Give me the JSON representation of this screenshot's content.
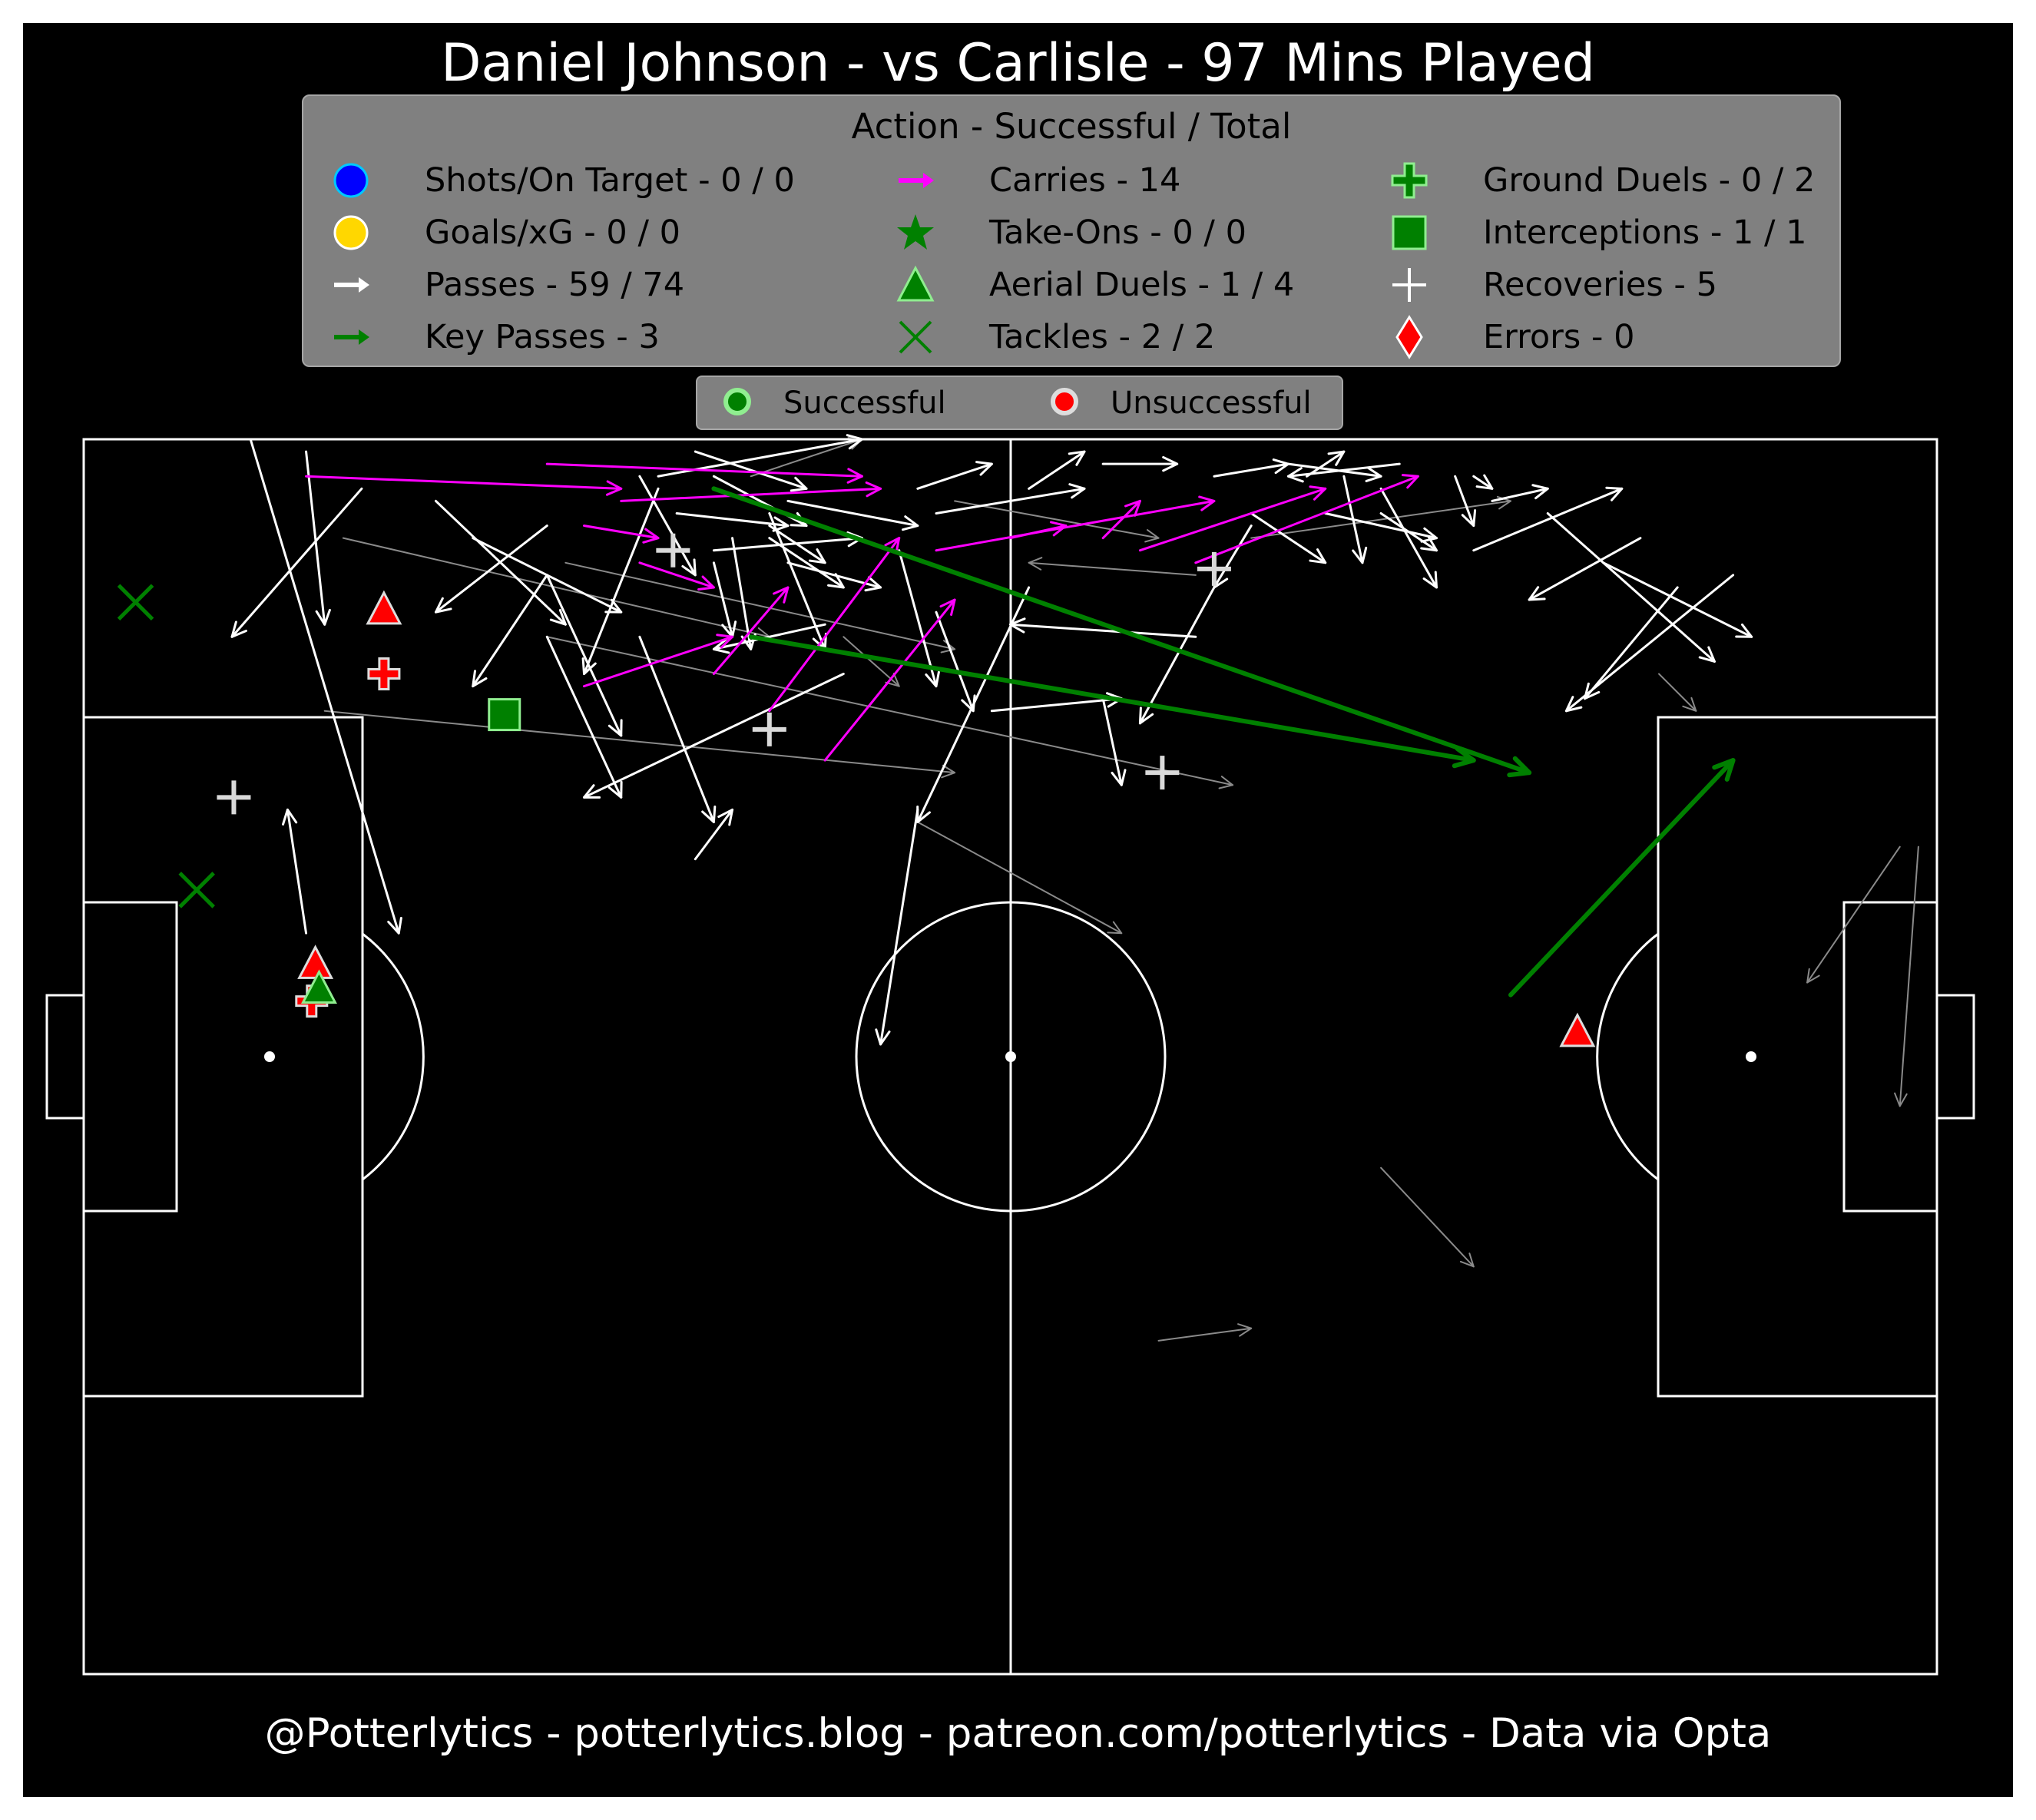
{
  "title": "Daniel Johnson - vs Carlisle - 97 Mins Played",
  "footer": "@Potterlytics - potterlytics.blog - patreon.com/potterlytics - Data via Opta",
  "colors": {
    "background": "#000000",
    "pitch_lines": "#ffffff",
    "legend_bg": "#808080",
    "pass": "#ffffff",
    "pass_unsuccessful": "#8a8a8a",
    "key_pass": "#008000",
    "carry": "#ff00ff",
    "shot": "#0000ff",
    "goal": "#ffd700",
    "duel_successful": "#008000",
    "duel_unsuccessful": "#ff0000",
    "recovery": "#d9d9d9"
  },
  "legend": {
    "title": "Action - Successful / Total",
    "items": [
      {
        "label": "Shots/On Target - 0 / 0",
        "icon": "circle-blue-icon"
      },
      {
        "label": "Goals/xG - 0 / 0",
        "icon": "circle-yellow-icon"
      },
      {
        "label": "Passes - 59 / 74",
        "icon": "arrow-white-icon"
      },
      {
        "label": "Key Passes - 3",
        "icon": "arrow-green-icon"
      },
      {
        "label": "Carries - 14",
        "icon": "arrow-magenta-icon"
      },
      {
        "label": "Take-Ons - 0 / 0",
        "icon": "star-green-icon"
      },
      {
        "label": "Aerial Duels - 1 / 4",
        "icon": "triangle-green-icon"
      },
      {
        "label": "Tackles - 2 / 2",
        "icon": "x-green-icon"
      },
      {
        "label": "Ground Duels - 0 / 2",
        "icon": "plus-green-icon"
      },
      {
        "label": "Interceptions - 1 / 1",
        "icon": "square-green-icon"
      },
      {
        "label": "Recoveries - 5",
        "icon": "plus-white-icon"
      },
      {
        "label": "Errors - 0",
        "icon": "diamond-red-icon"
      }
    ]
  },
  "status_legend": [
    {
      "label": "Successful",
      "icon": "dot-green-icon"
    },
    {
      "label": "Unsuccessful",
      "icon": "dot-red-icon"
    }
  ],
  "chart_data": {
    "type": "scatter",
    "description_units": "pitch coordinates 0-100 (x: left goal to right goal, y: bottom touchline to top touchline)",
    "passes_successful": [
      [
        9,
        100,
        17,
        60
      ],
      [
        12,
        99,
        13,
        85
      ],
      [
        15,
        96,
        8,
        84
      ],
      [
        19,
        95,
        26,
        85
      ],
      [
        25,
        93,
        19,
        86
      ],
      [
        21,
        92,
        29,
        86
      ],
      [
        25,
        84,
        29,
        71
      ],
      [
        31,
        96,
        27,
        81
      ],
      [
        30,
        97,
        33,
        89
      ],
      [
        33,
        99,
        39,
        96
      ],
      [
        34,
        97,
        39,
        93
      ],
      [
        37,
        94,
        40,
        83
      ],
      [
        41,
        81,
        27,
        71
      ],
      [
        38,
        90,
        43,
        88
      ],
      [
        44,
        91,
        46,
        80
      ],
      [
        40,
        85,
        34,
        83
      ],
      [
        37,
        92,
        41,
        88
      ],
      [
        30,
        84,
        34,
        69
      ],
      [
        25,
        89,
        21,
        80
      ],
      [
        25,
        89,
        29,
        76
      ],
      [
        32,
        94,
        38,
        93
      ],
      [
        37,
        93,
        40,
        90
      ],
      [
        35,
        92,
        36,
        83
      ],
      [
        34,
        90,
        35,
        84
      ],
      [
        31,
        97,
        42,
        100
      ],
      [
        34,
        91,
        42,
        92
      ],
      [
        38,
        95,
        45,
        93
      ],
      [
        45,
        96,
        49,
        98
      ],
      [
        51,
        96,
        54,
        99
      ],
      [
        46,
        94,
        54,
        96
      ],
      [
        55,
        98,
        59,
        98
      ],
      [
        61,
        97,
        65,
        98
      ],
      [
        65,
        98,
        70,
        97
      ],
      [
        71,
        98,
        65,
        97
      ],
      [
        70,
        96,
        73,
        88
      ],
      [
        68,
        97,
        69,
        90
      ],
      [
        74,
        97,
        75,
        93
      ],
      [
        75,
        97,
        76,
        96
      ],
      [
        66,
        97,
        68,
        99
      ],
      [
        76,
        95,
        79,
        96
      ],
      [
        70,
        94,
        73,
        91
      ],
      [
        63,
        94,
        67,
        90
      ],
      [
        63,
        93,
        61,
        88
      ],
      [
        67,
        94,
        73,
        92
      ],
      [
        75,
        91,
        83,
        96
      ],
      [
        82,
        90,
        90,
        84
      ],
      [
        79,
        94,
        88,
        82
      ],
      [
        84,
        92,
        78,
        87
      ],
      [
        86,
        88,
        81,
        79
      ],
      [
        89,
        89,
        80,
        78
      ],
      [
        61,
        88,
        57,
        77
      ],
      [
        60,
        84,
        50,
        85
      ],
      [
        51,
        88,
        45,
        69
      ],
      [
        46,
        86,
        48,
        78
      ],
      [
        49,
        78,
        56,
        79
      ],
      [
        45,
        70,
        43,
        51
      ],
      [
        33,
        66,
        35,
        70
      ],
      [
        12,
        60,
        11,
        70
      ],
      [
        55,
        79,
        56,
        72
      ]
    ],
    "passes_unsuccessful": [
      [
        14,
        92,
        37,
        84
      ],
      [
        26,
        90,
        47,
        83
      ],
      [
        13,
        78,
        47,
        73
      ],
      [
        25,
        84,
        62,
        72
      ],
      [
        47,
        95,
        58,
        92
      ],
      [
        63,
        92,
        77,
        95
      ],
      [
        60,
        89,
        51,
        90
      ],
      [
        45,
        69,
        56,
        60
      ],
      [
        58,
        27,
        63,
        28
      ],
      [
        70,
        41,
        75,
        33
      ],
      [
        85,
        81,
        87,
        78
      ],
      [
        99,
        67,
        98,
        46
      ],
      [
        98,
        67,
        93,
        56
      ],
      [
        41,
        84,
        44,
        80
      ],
      [
        36,
        97,
        42,
        100
      ]
    ],
    "key_passes": [
      [
        34,
        96,
        78,
        73
      ],
      [
        36,
        84,
        75,
        74
      ],
      [
        77,
        55,
        89,
        74
      ]
    ],
    "carries": [
      [
        12,
        97,
        29,
        96
      ],
      [
        25,
        98,
        42,
        97
      ],
      [
        27,
        93,
        31,
        92
      ],
      [
        29,
        95,
        43,
        96
      ],
      [
        30,
        90,
        34,
        88
      ],
      [
        27,
        80,
        35,
        84
      ],
      [
        34,
        81,
        38,
        88
      ],
      [
        37,
        78,
        44,
        92
      ],
      [
        40,
        74,
        47,
        87
      ],
      [
        46,
        91,
        61,
        95
      ],
      [
        50,
        92,
        53,
        93
      ],
      [
        55,
        92,
        57,
        95
      ],
      [
        57,
        91,
        67,
        96
      ],
      [
        60,
        90,
        72,
        97
      ]
    ],
    "aerial_duels": [
      {
        "x": 16.2,
        "y": 86.2,
        "successful": false
      },
      {
        "x": 12.5,
        "y": 57.5,
        "successful": false
      },
      {
        "x": 12.7,
        "y": 55.5,
        "successful": true
      },
      {
        "x": 80.6,
        "y": 52.0,
        "successful": false
      }
    ],
    "tackles": [
      {
        "x": 2.8,
        "y": 86.8,
        "successful": true
      },
      {
        "x": 6.1,
        "y": 63.5,
        "successful": true
      }
    ],
    "ground_duels": [
      {
        "x": 16.2,
        "y": 81.0,
        "successful": false
      },
      {
        "x": 12.3,
        "y": 54.5,
        "successful": false
      }
    ],
    "interceptions": [
      {
        "x": 22.7,
        "y": 77.7,
        "successful": true
      }
    ],
    "recoveries": [
      {
        "x": 8.1,
        "y": 71.0
      },
      {
        "x": 31.8,
        "y": 91.0
      },
      {
        "x": 37.0,
        "y": 76.5
      },
      {
        "x": 61.0,
        "y": 89.5
      },
      {
        "x": 58.2,
        "y": 73.0
      }
    ]
  }
}
